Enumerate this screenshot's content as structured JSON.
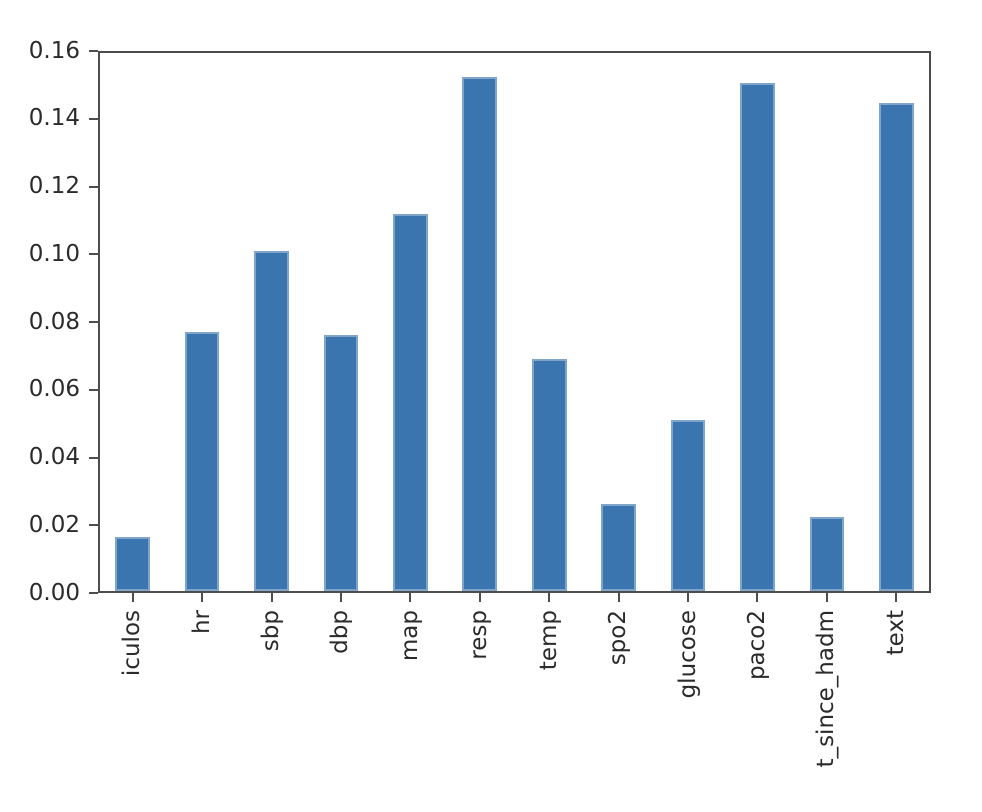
{
  "figure": {
    "background": "#ffffff"
  },
  "chart_data": {
    "type": "bar",
    "title": "",
    "xlabel": "",
    "ylabel": "",
    "categories": [
      "iculos",
      "hr",
      "sbp",
      "dbp",
      "map",
      "resp",
      "temp",
      "spo2",
      "glucose",
      "paco2",
      "t_since_hadm",
      "text"
    ],
    "values": [
      0.016,
      0.077,
      0.101,
      0.076,
      0.112,
      0.153,
      0.069,
      0.026,
      0.051,
      0.151,
      0.022,
      0.145
    ],
    "ylim": [
      0,
      0.16
    ],
    "yticks": [
      0.0,
      0.02,
      0.04,
      0.06,
      0.08,
      0.1,
      0.12,
      0.14,
      0.16
    ],
    "ytick_labels": [
      "0.00",
      "0.02",
      "0.04",
      "0.06",
      "0.08",
      "0.10",
      "0.12",
      "0.14",
      "0.16"
    ],
    "x_tick_rotation": 90,
    "grid": false,
    "legend": null,
    "bar_width_fraction": 0.5,
    "colors": {
      "bar": "#3b75af",
      "axis": "#4d4d4d",
      "text": "#2b2b2b"
    }
  }
}
